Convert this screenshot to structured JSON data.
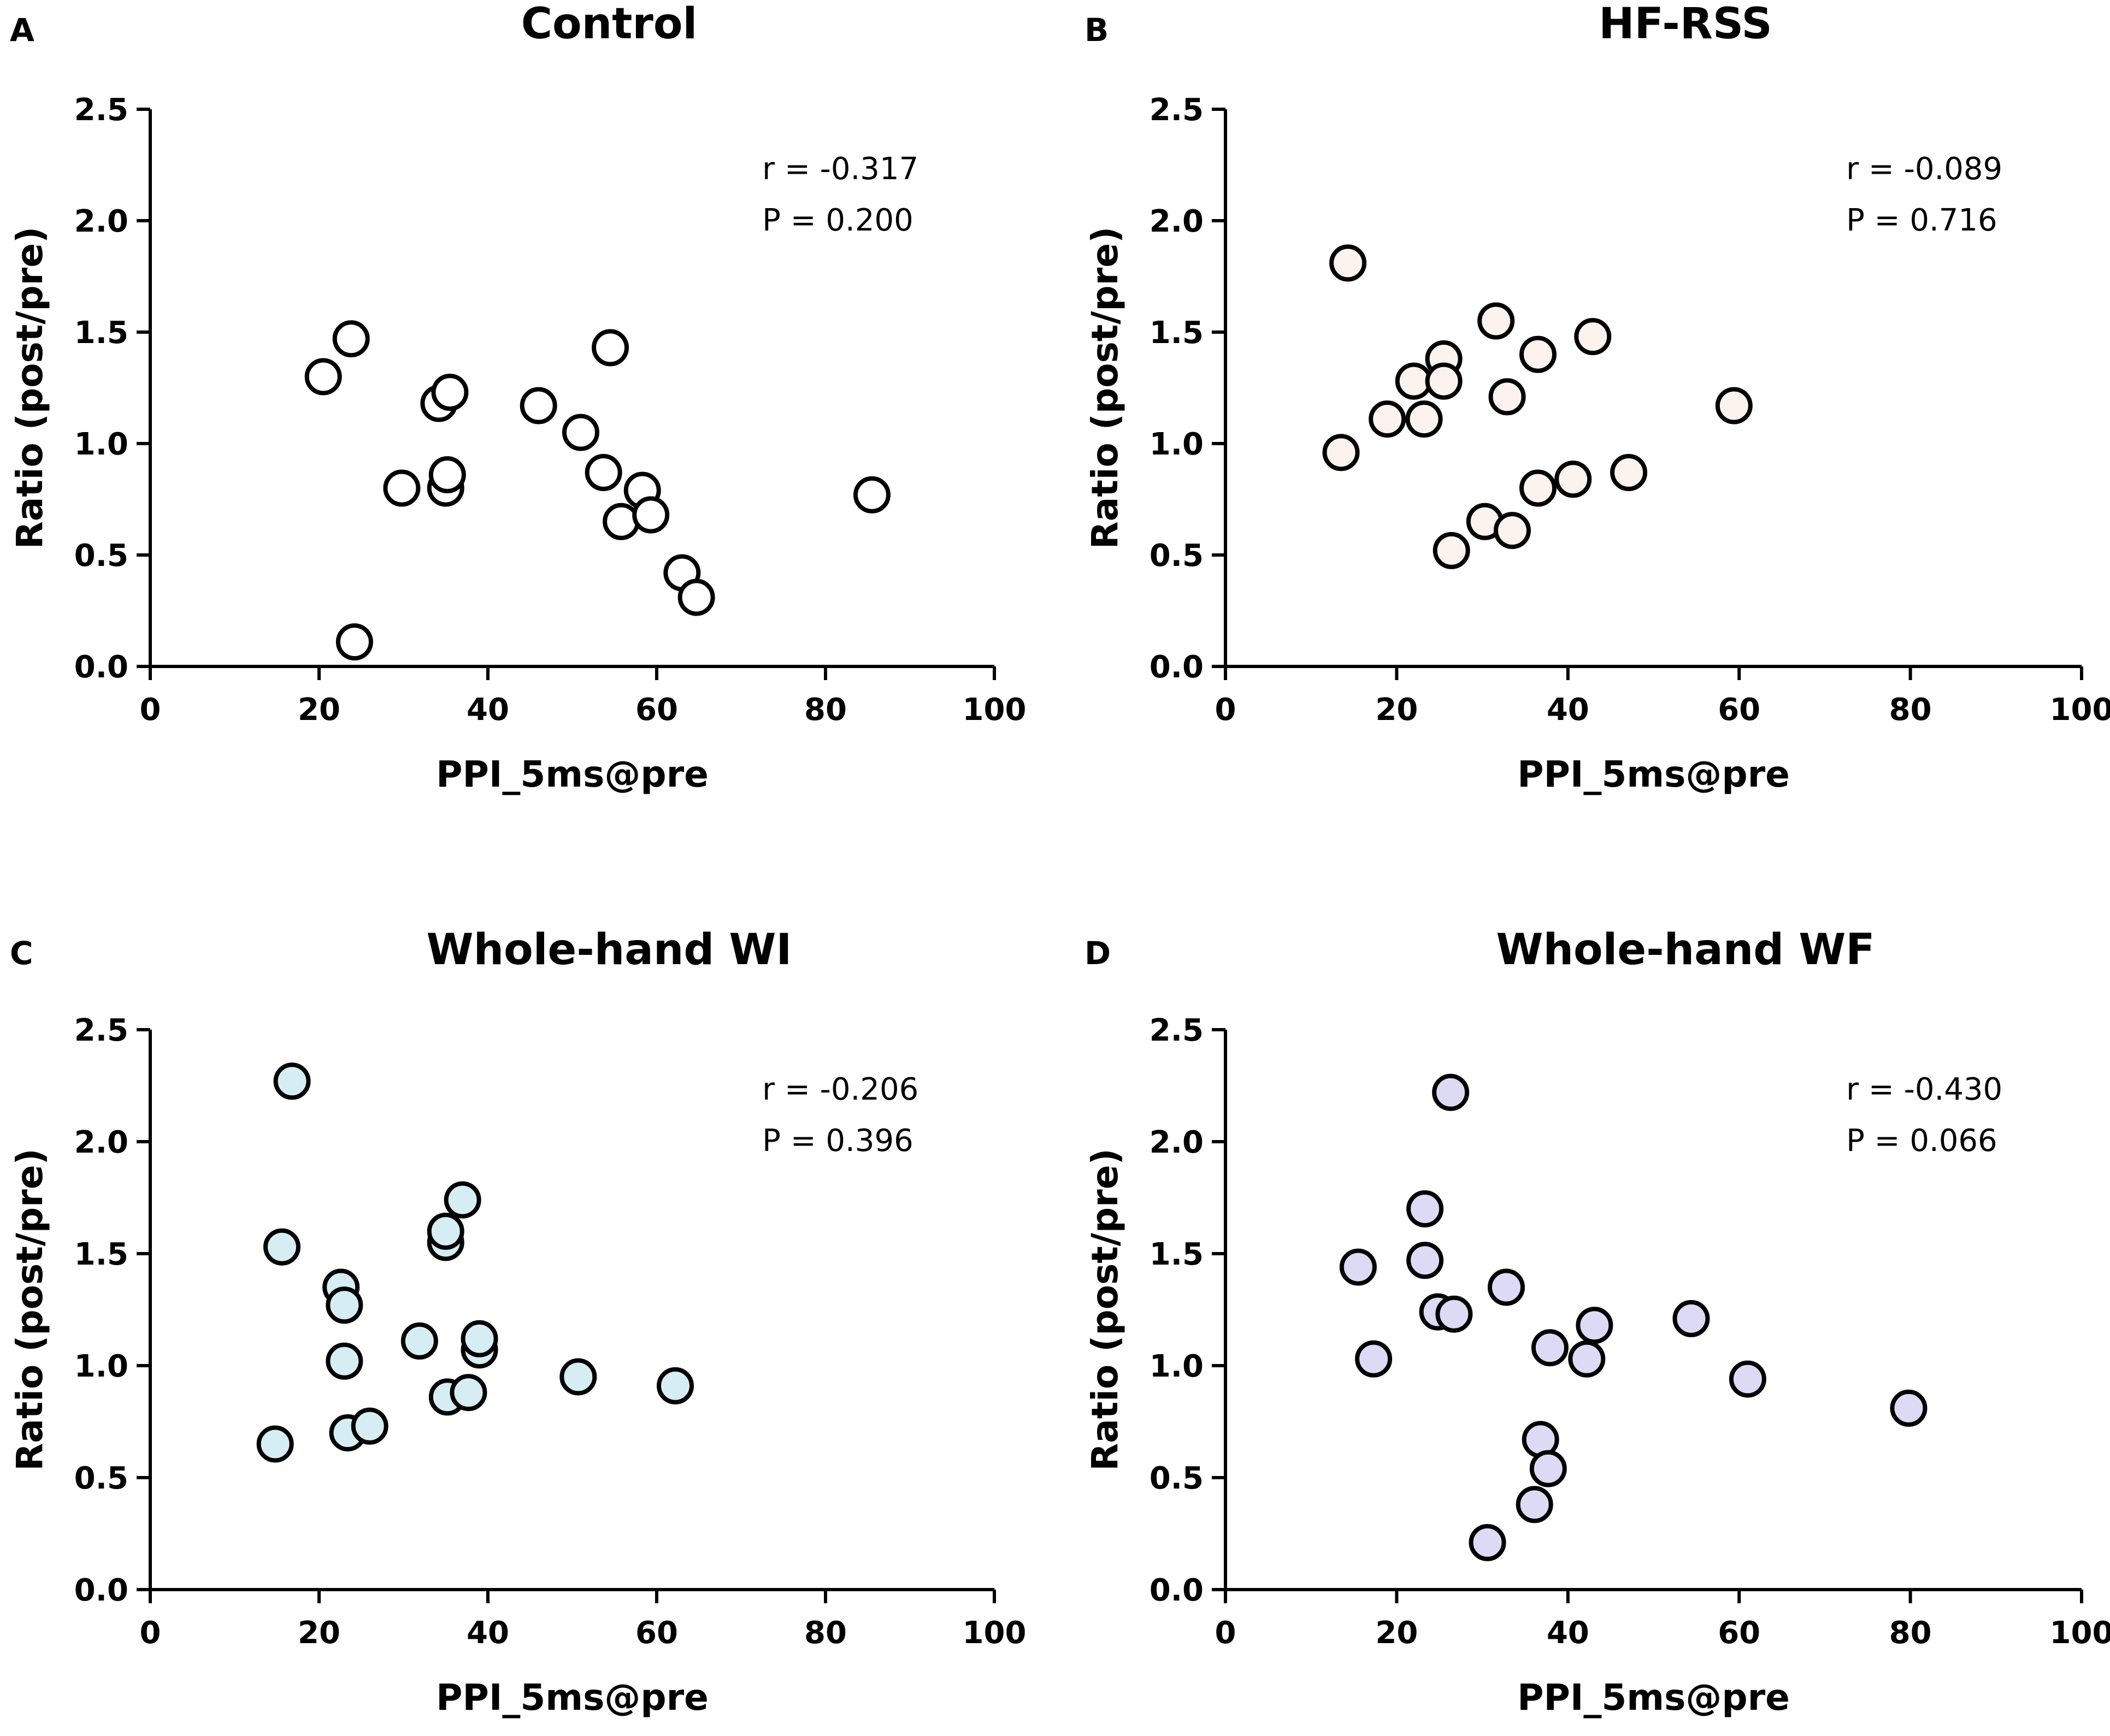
{
  "chart_data": [
    {
      "panel": "A",
      "type": "scatter",
      "title": "Control",
      "xlabel": "PPI_5ms@pre",
      "ylabel": "Ratio (post/pre)",
      "xlim": [
        0,
        100
      ],
      "ylim": [
        0,
        2.5
      ],
      "xticks": [
        "0",
        "20",
        "40",
        "60",
        "80",
        "100"
      ],
      "yticks": [
        "0.0",
        "0.5",
        "1.0",
        "1.5",
        "2.0",
        "2.5"
      ],
      "stats": {
        "r": "r = -0.317",
        "p": "P = 0.200"
      },
      "marker_color": "#ffffff",
      "points": [
        {
          "x": 20.5,
          "y": 1.3
        },
        {
          "x": 23.8,
          "y": 1.47
        },
        {
          "x": 24.2,
          "y": 0.11
        },
        {
          "x": 29.8,
          "y": 0.8
        },
        {
          "x": 34.2,
          "y": 1.18
        },
        {
          "x": 35.5,
          "y": 1.23
        },
        {
          "x": 35.0,
          "y": 0.8
        },
        {
          "x": 35.2,
          "y": 0.86
        },
        {
          "x": 46.0,
          "y": 1.17
        },
        {
          "x": 51.0,
          "y": 1.05
        },
        {
          "x": 53.7,
          "y": 0.87
        },
        {
          "x": 54.5,
          "y": 1.43
        },
        {
          "x": 55.8,
          "y": 0.65
        },
        {
          "x": 58.3,
          "y": 0.79
        },
        {
          "x": 59.3,
          "y": 0.68
        },
        {
          "x": 63.0,
          "y": 0.42
        },
        {
          "x": 64.7,
          "y": 0.31
        },
        {
          "x": 85.5,
          "y": 0.77
        }
      ]
    },
    {
      "panel": "B",
      "type": "scatter",
      "title": "HF-RSS",
      "xlabel": "PPI_5ms@pre",
      "ylabel": "Ratio (post/pre)",
      "xlim": [
        0,
        100
      ],
      "ylim": [
        0,
        2.5
      ],
      "xticks": [
        "0",
        "20",
        "40",
        "60",
        "80",
        "100"
      ],
      "yticks": [
        "0.0",
        "0.5",
        "1.0",
        "1.5",
        "2.0",
        "2.5"
      ],
      "stats": {
        "r": "r = -0.089",
        "p": "P = 0.716"
      },
      "marker_color": "#fdf3ee",
      "points": [
        {
          "x": 13.5,
          "y": 0.96
        },
        {
          "x": 14.3,
          "y": 1.81
        },
        {
          "x": 18.9,
          "y": 1.11
        },
        {
          "x": 22.0,
          "y": 1.28
        },
        {
          "x": 23.2,
          "y": 1.11
        },
        {
          "x": 25.5,
          "y": 1.38
        },
        {
          "x": 25.5,
          "y": 1.28
        },
        {
          "x": 26.4,
          "y": 0.52
        },
        {
          "x": 30.3,
          "y": 0.65
        },
        {
          "x": 31.6,
          "y": 1.55
        },
        {
          "x": 32.9,
          "y": 1.21
        },
        {
          "x": 33.5,
          "y": 0.61
        },
        {
          "x": 36.5,
          "y": 1.4
        },
        {
          "x": 36.5,
          "y": 0.8
        },
        {
          "x": 40.6,
          "y": 0.84
        },
        {
          "x": 42.9,
          "y": 1.48
        },
        {
          "x": 47.1,
          "y": 0.87
        },
        {
          "x": 59.4,
          "y": 1.17
        }
      ]
    },
    {
      "panel": "C",
      "type": "scatter",
      "title": "Whole-hand WI",
      "xlabel": "PPI_5ms@pre",
      "ylabel": "Ratio (post/pre)",
      "xlim": [
        0,
        100
      ],
      "ylim": [
        0,
        2.5
      ],
      "xticks": [
        "0",
        "20",
        "40",
        "60",
        "80",
        "100"
      ],
      "yticks": [
        "0.0",
        "0.5",
        "1.0",
        "1.5",
        "2.0",
        "2.5"
      ],
      "stats": {
        "r": "r = -0.206",
        "p": "P = 0.396"
      },
      "marker_color": "#d6eef3",
      "points": [
        {
          "x": 14.8,
          "y": 0.65
        },
        {
          "x": 15.6,
          "y": 1.53
        },
        {
          "x": 16.8,
          "y": 2.27
        },
        {
          "x": 22.6,
          "y": 1.35
        },
        {
          "x": 23.0,
          "y": 1.27
        },
        {
          "x": 23.0,
          "y": 1.02
        },
        {
          "x": 23.4,
          "y": 0.7
        },
        {
          "x": 26.0,
          "y": 0.73
        },
        {
          "x": 31.9,
          "y": 1.11
        },
        {
          "x": 35.0,
          "y": 1.55
        },
        {
          "x": 35.0,
          "y": 1.6
        },
        {
          "x": 35.2,
          "y": 0.86
        },
        {
          "x": 37.0,
          "y": 1.74
        },
        {
          "x": 37.7,
          "y": 0.88
        },
        {
          "x": 39.0,
          "y": 1.07
        },
        {
          "x": 39.0,
          "y": 1.12
        },
        {
          "x": 50.7,
          "y": 0.95
        },
        {
          "x": 62.2,
          "y": 0.91
        }
      ]
    },
    {
      "panel": "D",
      "type": "scatter",
      "title": "Whole-hand WF",
      "xlabel": "PPI_5ms@pre",
      "ylabel": "Ratio (post/pre)",
      "xlim": [
        0,
        100
      ],
      "ylim": [
        0,
        2.5
      ],
      "xticks": [
        "0",
        "20",
        "40",
        "60",
        "80",
        "100"
      ],
      "yticks": [
        "0.0",
        "0.5",
        "1.0",
        "1.5",
        "2.0",
        "2.5"
      ],
      "stats": {
        "r": "r = -0.430",
        "p": "P = 0.066"
      },
      "marker_color": "#dcdaf4",
      "points": [
        {
          "x": 15.5,
          "y": 1.44
        },
        {
          "x": 17.3,
          "y": 1.03
        },
        {
          "x": 23.3,
          "y": 1.7
        },
        {
          "x": 23.3,
          "y": 1.47
        },
        {
          "x": 24.8,
          "y": 1.24
        },
        {
          "x": 26.3,
          "y": 2.22
        },
        {
          "x": 26.7,
          "y": 1.23
        },
        {
          "x": 30.6,
          "y": 0.21
        },
        {
          "x": 32.8,
          "y": 1.35
        },
        {
          "x": 36.1,
          "y": 0.38
        },
        {
          "x": 36.8,
          "y": 0.67
        },
        {
          "x": 37.7,
          "y": 0.54
        },
        {
          "x": 37.9,
          "y": 1.08
        },
        {
          "x": 42.2,
          "y": 1.03
        },
        {
          "x": 43.1,
          "y": 1.18
        },
        {
          "x": 54.4,
          "y": 1.21
        },
        {
          "x": 61.0,
          "y": 0.94
        },
        {
          "x": 79.8,
          "y": 0.81
        }
      ]
    }
  ]
}
